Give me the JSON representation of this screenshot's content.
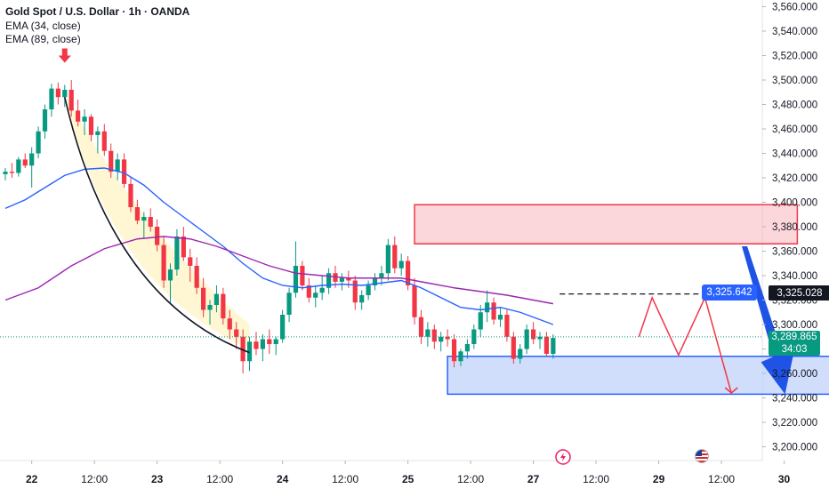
{
  "legend": {
    "title": "Gold Spot / U.S. Dollar · 1h · OANDA",
    "ema1": "EMA (34, close)",
    "ema2": "EMA (89, close)"
  },
  "price_labels": {
    "dashed_level": "3,325.642",
    "dashed_level_right": "3,325.028",
    "last_price": "3,289.865",
    "countdown": "34:03"
  },
  "colors": {
    "up": "#089981",
    "down": "#f23645",
    "ema34": "#2962ff",
    "ema89": "#9c27b0",
    "supply_zone": "#f7b5bd",
    "demand_zone": "#bcd0fb",
    "projection": "#f23645",
    "big_arrow": "#1e53e5",
    "last_price": "#089981",
    "dashed_level": "#1e53e5"
  },
  "icons": [
    "down-arrow-marker-icon",
    "flash-event-icon",
    "us-flag-event-icon"
  ],
  "chart_data": {
    "type": "candlestick",
    "title": "Gold Spot / U.S. Dollar · 1h · OANDA",
    "ylim": [
      3180,
      3570
    ],
    "y_ticks": [
      "3,560.000",
      "3,540.000",
      "3,520.000",
      "3,500.000",
      "3,480.000",
      "3,460.000",
      "3,440.000",
      "3,420.000",
      "3,400.000",
      "3,380.000",
      "3,360.000",
      "3,340.000",
      "3,320.000",
      "3,300.000",
      "3,280.000",
      "3,260.000",
      "3,240.000",
      "3,220.000",
      "3,200.000"
    ],
    "y_tick_values": [
      3560,
      3540,
      3520,
      3500,
      3480,
      3460,
      3440,
      3420,
      3400,
      3380,
      3360,
      3340,
      3320,
      3300,
      3280,
      3260,
      3240,
      3220,
      3200
    ],
    "x_ticks": [
      {
        "label": "22",
        "bold": true
      },
      {
        "label": "12:00",
        "bold": false
      },
      {
        "label": "23",
        "bold": true
      },
      {
        "label": "12:00",
        "bold": false
      },
      {
        "label": "24",
        "bold": true
      },
      {
        "label": "12:00",
        "bold": false
      },
      {
        "label": "25",
        "bold": true
      },
      {
        "label": "12:00",
        "bold": false
      },
      {
        "label": "27",
        "bold": true
      },
      {
        "label": "12:00",
        "bold": false
      },
      {
        "label": "29",
        "bold": true
      },
      {
        "label": "12:00",
        "bold": false
      },
      {
        "label": "30",
        "bold": true
      }
    ],
    "candles": [
      [
        3423,
        3428,
        3418,
        3425
      ],
      [
        3425,
        3432,
        3420,
        3424
      ],
      [
        3424,
        3437,
        3421,
        3435
      ],
      [
        3435,
        3440,
        3428,
        3430
      ],
      [
        3430,
        3445,
        3412,
        3440
      ],
      [
        3440,
        3462,
        3436,
        3458
      ],
      [
        3458,
        3480,
        3452,
        3476
      ],
      [
        3476,
        3497,
        3470,
        3493
      ],
      [
        3493,
        3498,
        3480,
        3486
      ],
      [
        3486,
        3496,
        3478,
        3492
      ],
      [
        3492,
        3500,
        3470,
        3475
      ],
      [
        3475,
        3484,
        3462,
        3466
      ],
      [
        3466,
        3476,
        3455,
        3470
      ],
      [
        3470,
        3472,
        3450,
        3455
      ],
      [
        3455,
        3462,
        3440,
        3458
      ],
      [
        3458,
        3464,
        3438,
        3442
      ],
      [
        3442,
        3448,
        3420,
        3425
      ],
      [
        3425,
        3440,
        3418,
        3435
      ],
      [
        3435,
        3440,
        3412,
        3415
      ],
      [
        3415,
        3420,
        3392,
        3396
      ],
      [
        3396,
        3402,
        3382,
        3385
      ],
      [
        3385,
        3392,
        3370,
        3388
      ],
      [
        3388,
        3395,
        3376,
        3380
      ],
      [
        3380,
        3386,
        3360,
        3365
      ],
      [
        3365,
        3372,
        3330,
        3336
      ],
      [
        3336,
        3350,
        3318,
        3345
      ],
      [
        3345,
        3378,
        3340,
        3372
      ],
      [
        3372,
        3380,
        3352,
        3355
      ],
      [
        3355,
        3362,
        3335,
        3348
      ],
      [
        3348,
        3355,
        3325,
        3330
      ],
      [
        3330,
        3338,
        3306,
        3312
      ],
      [
        3312,
        3320,
        3300,
        3316
      ],
      [
        3316,
        3332,
        3310,
        3325
      ],
      [
        3325,
        3330,
        3300,
        3305
      ],
      [
        3305,
        3312,
        3288,
        3296
      ],
      [
        3296,
        3302,
        3280,
        3290
      ],
      [
        3290,
        3296,
        3260,
        3270
      ],
      [
        3270,
        3290,
        3262,
        3286
      ],
      [
        3286,
        3294,
        3275,
        3280
      ],
      [
        3280,
        3292,
        3270,
        3288
      ],
      [
        3288,
        3296,
        3276,
        3284
      ],
      [
        3284,
        3290,
        3275,
        3288
      ],
      [
        3288,
        3312,
        3285,
        3308
      ],
      [
        3308,
        3330,
        3302,
        3326
      ],
      [
        3326,
        3368,
        3322,
        3348
      ],
      [
        3348,
        3352,
        3328,
        3332
      ],
      [
        3332,
        3338,
        3318,
        3322
      ],
      [
        3322,
        3332,
        3314,
        3326
      ],
      [
        3326,
        3340,
        3320,
        3330
      ],
      [
        3330,
        3346,
        3325,
        3342
      ],
      [
        3342,
        3348,
        3330,
        3335
      ],
      [
        3335,
        3342,
        3328,
        3338
      ],
      [
        3338,
        3344,
        3330,
        3336
      ],
      [
        3336,
        3340,
        3312,
        3318
      ],
      [
        3318,
        3328,
        3312,
        3324
      ],
      [
        3324,
        3336,
        3320,
        3332
      ],
      [
        3332,
        3342,
        3328,
        3338
      ],
      [
        3338,
        3348,
        3332,
        3342
      ],
      [
        3342,
        3370,
        3336,
        3365
      ],
      [
        3365,
        3372,
        3342,
        3346
      ],
      [
        3346,
        3358,
        3340,
        3352
      ],
      [
        3352,
        3356,
        3328,
        3332
      ],
      [
        3332,
        3338,
        3300,
        3306
      ],
      [
        3306,
        3312,
        3284,
        3290
      ],
      [
        3290,
        3302,
        3282,
        3296
      ],
      [
        3296,
        3300,
        3280,
        3286
      ],
      [
        3286,
        3294,
        3278,
        3290
      ],
      [
        3290,
        3296,
        3282,
        3288
      ],
      [
        3288,
        3292,
        3265,
        3270
      ],
      [
        3270,
        3280,
        3266,
        3278
      ],
      [
        3278,
        3288,
        3272,
        3284
      ],
      [
        3284,
        3300,
        3280,
        3296
      ],
      [
        3296,
        3316,
        3290,
        3310
      ],
      [
        3310,
        3328,
        3302,
        3318
      ],
      [
        3318,
        3322,
        3300,
        3304
      ],
      [
        3304,
        3314,
        3298,
        3308
      ],
      [
        3308,
        3312,
        3286,
        3290
      ],
      [
        3290,
        3294,
        3268,
        3272
      ],
      [
        3272,
        3284,
        3268,
        3280
      ],
      [
        3280,
        3300,
        3276,
        3296
      ],
      [
        3296,
        3302,
        3284,
        3288
      ],
      [
        3288,
        3294,
        3280,
        3290
      ],
      [
        3290,
        3294,
        3274,
        3276
      ],
      [
        3276,
        3292,
        3272,
        3289
      ]
    ],
    "ema34": [
      [
        0,
        3395
      ],
      [
        3,
        3402
      ],
      [
        6,
        3412
      ],
      [
        9,
        3422
      ],
      [
        12,
        3427
      ],
      [
        15,
        3428
      ],
      [
        18,
        3424
      ],
      [
        21,
        3414
      ],
      [
        24,
        3400
      ],
      [
        27,
        3388
      ],
      [
        30,
        3376
      ],
      [
        33,
        3364
      ],
      [
        36,
        3350
      ],
      [
        39,
        3338
      ],
      [
        42,
        3332
      ],
      [
        45,
        3330
      ],
      [
        48,
        3332
      ],
      [
        51,
        3333
      ],
      [
        54,
        3332
      ],
      [
        57,
        3334
      ],
      [
        60,
        3336
      ],
      [
        63,
        3330
      ],
      [
        66,
        3322
      ],
      [
        69,
        3314
      ],
      [
        72,
        3312
      ],
      [
        75,
        3314
      ],
      [
        78,
        3310
      ],
      [
        81,
        3304
      ],
      [
        83,
        3300
      ]
    ],
    "ema89": [
      [
        0,
        3320
      ],
      [
        5,
        3330
      ],
      [
        10,
        3348
      ],
      [
        15,
        3362
      ],
      [
        20,
        3370
      ],
      [
        24,
        3372
      ],
      [
        28,
        3370
      ],
      [
        32,
        3364
      ],
      [
        36,
        3356
      ],
      [
        40,
        3348
      ],
      [
        44,
        3342
      ],
      [
        48,
        3340
      ],
      [
        52,
        3338
      ],
      [
        56,
        3338
      ],
      [
        60,
        3338
      ],
      [
        64,
        3334
      ],
      [
        68,
        3330
      ],
      [
        72,
        3327
      ],
      [
        76,
        3324
      ],
      [
        80,
        3320
      ],
      [
        83,
        3317
      ]
    ],
    "curve": [
      [
        9,
        3486
      ],
      [
        14,
        3420
      ],
      [
        20,
        3368
      ],
      [
        26,
        3335
      ],
      [
        32,
        3304
      ],
      [
        37,
        3280
      ]
    ],
    "supply_zone": {
      "x0": 62,
      "x1": 120,
      "y0": 3398,
      "y1": 3366
    },
    "demand_zone": {
      "x0": 67,
      "x1": 125,
      "y0": 3274,
      "y1": 3243
    },
    "dashed_level": {
      "x0": 84,
      "x1": 140,
      "y": 3325
    },
    "projection": [
      [
        96,
        3290
      ],
      [
        98,
        3322
      ],
      [
        102,
        3275
      ],
      [
        106,
        3322
      ],
      [
        110,
        3244
      ]
    ],
    "big_arrow": [
      [
        112,
        3364
      ],
      [
        118,
        3246
      ]
    ],
    "last_price_value": 3289.865,
    "marker_arrow": {
      "x": 9,
      "y": 3520
    }
  }
}
